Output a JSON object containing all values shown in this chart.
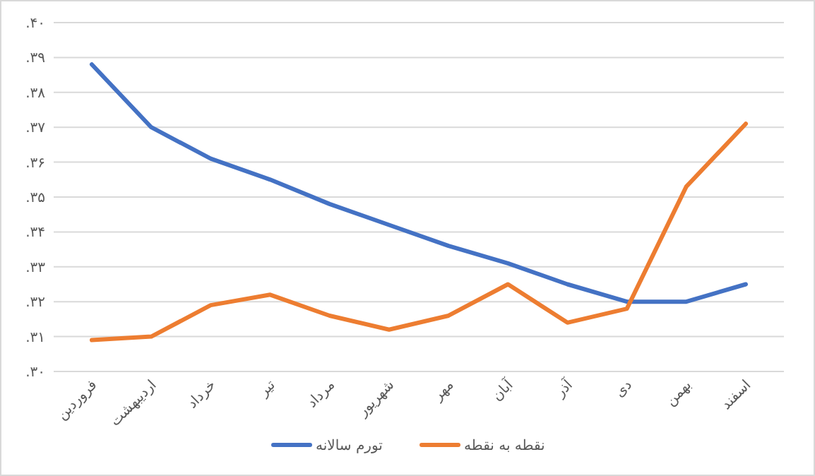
{
  "chart_data": {
    "type": "line",
    "categories": [
      "فروردین",
      "اردیبهشت",
      "خرداد",
      "تیر",
      "مرداد",
      "شهریور",
      "مهر",
      "آبان",
      "آذر",
      "دی",
      "بهمن",
      "اسفند"
    ],
    "series": [
      {
        "name": "تورم سالانه",
        "color": "#4472c4",
        "values": [
          0.388,
          0.37,
          0.361,
          0.355,
          0.348,
          0.342,
          0.336,
          0.331,
          0.325,
          0.32,
          0.32,
          0.325
        ]
      },
      {
        "name": "نقطه به نقطه",
        "color": "#ed7d31",
        "values": [
          0.309,
          0.31,
          0.319,
          0.322,
          0.316,
          0.312,
          0.316,
          0.325,
          0.314,
          0.318,
          0.353,
          0.371
        ]
      }
    ],
    "ylim": [
      0.3,
      0.4
    ],
    "yticks": [
      {
        "value": 0.3,
        "label": ".۳۰"
      },
      {
        "value": 0.31,
        "label": ".۳۱"
      },
      {
        "value": 0.32,
        "label": ".۳۲"
      },
      {
        "value": 0.33,
        "label": ".۳۳"
      },
      {
        "value": 0.34,
        "label": ".۳۴"
      },
      {
        "value": 0.35,
        "label": ".۳۵"
      },
      {
        "value": 0.36,
        "label": ".۳۶"
      },
      {
        "value": 0.37,
        "label": ".۳۷"
      },
      {
        "value": 0.38,
        "label": ".۳۸"
      },
      {
        "value": 0.39,
        "label": ".۳۹"
      },
      {
        "value": 0.4,
        "label": ".۴۰"
      }
    ],
    "grid": "y",
    "legend": "bottom",
    "marker": "none",
    "line_style": "solid"
  }
}
